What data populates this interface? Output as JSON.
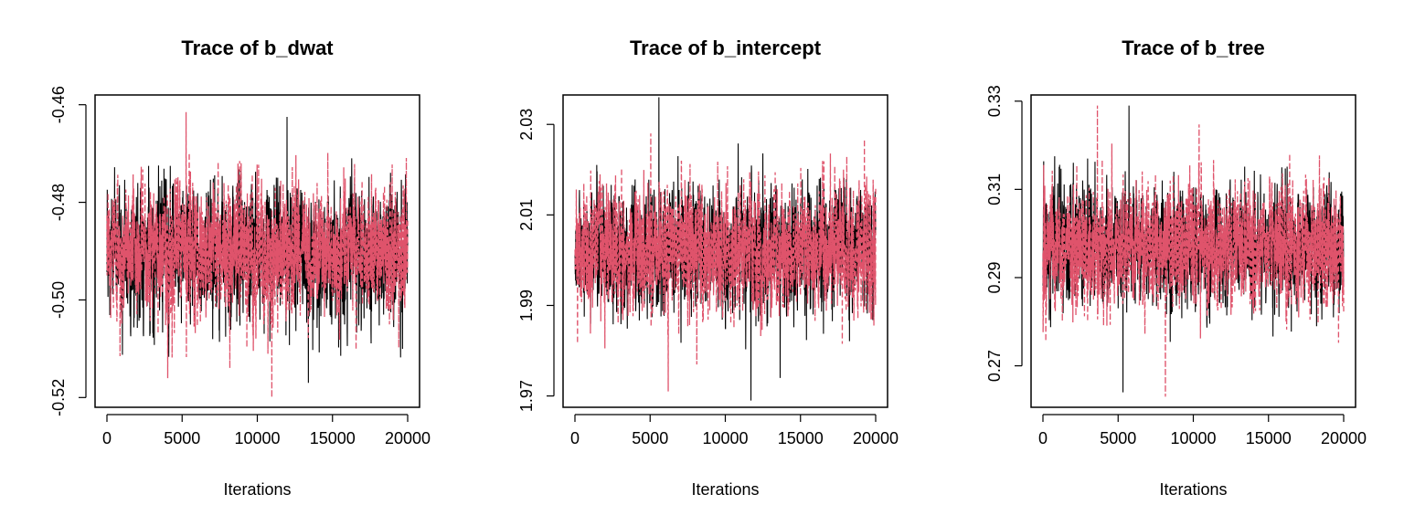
{
  "colors": {
    "chain1": "#000000",
    "chain2": "#DF536B"
  },
  "chart_data": [
    {
      "type": "line",
      "title": "Trace of b_dwat",
      "xlabel": "Iterations",
      "ylabel": "",
      "xlim": [
        0,
        20000
      ],
      "ylim": [
        -0.522,
        -0.458
      ],
      "xticks": [
        0,
        5000,
        10000,
        15000,
        20000
      ],
      "xtick_labels": [
        "0",
        "5000",
        "10000",
        "15000",
        "20000"
      ],
      "yticks": [
        -0.52,
        -0.5,
        -0.48,
        -0.46
      ],
      "ytick_labels": [
        "-0.52",
        "-0.50",
        "-0.48",
        "-0.46"
      ],
      "grid": false,
      "series": [
        {
          "color": "#000000",
          "dash": "solid",
          "mean": -0.49,
          "sd": 0.0065,
          "min": -0.517,
          "max": -0.4625
        },
        {
          "color": "#DF536B",
          "dash": "dashed",
          "mean": -0.49,
          "sd": 0.0065,
          "min": -0.52,
          "max": -0.4615
        }
      ]
    },
    {
      "type": "line",
      "title": "Trace of b_intercept",
      "xlabel": "Iterations",
      "ylabel": "",
      "xlim": [
        0,
        20000
      ],
      "ylim": [
        1.9675,
        2.0365
      ],
      "xticks": [
        0,
        5000,
        10000,
        15000,
        20000
      ],
      "xtick_labels": [
        "0",
        "5000",
        "10000",
        "15000",
        "20000"
      ],
      "yticks": [
        1.97,
        1.99,
        2.01,
        2.03
      ],
      "ytick_labels": [
        "1.97",
        "1.99",
        "2.01",
        "2.03"
      ],
      "grid": false,
      "series": [
        {
          "color": "#000000",
          "dash": "solid",
          "mean": 2.002,
          "sd": 0.0065,
          "min": 1.969,
          "max": 2.036
        },
        {
          "color": "#DF536B",
          "dash": "dashed",
          "mean": 2.002,
          "sd": 0.0065,
          "min": 1.971,
          "max": 2.028
        }
      ]
    },
    {
      "type": "line",
      "title": "Trace of b_tree",
      "xlabel": "Iterations",
      "ylabel": "",
      "xlim": [
        0,
        20000
      ],
      "ylim": [
        0.2606,
        0.3314
      ],
      "xticks": [
        0,
        5000,
        10000,
        15000,
        20000
      ],
      "xtick_labels": [
        "0",
        "5000",
        "10000",
        "15000",
        "20000"
      ],
      "yticks": [
        0.27,
        0.29,
        0.31,
        0.33
      ],
      "ytick_labels": [
        "0.27",
        "0.29",
        "0.31",
        "0.33"
      ],
      "grid": false,
      "series": [
        {
          "color": "#000000",
          "dash": "solid",
          "mean": 0.297,
          "sd": 0.0065,
          "min": 0.264,
          "max": 0.329
        },
        {
          "color": "#DF536B",
          "dash": "dashed",
          "mean": 0.297,
          "sd": 0.0065,
          "min": 0.263,
          "max": 0.329
        }
      ]
    }
  ]
}
